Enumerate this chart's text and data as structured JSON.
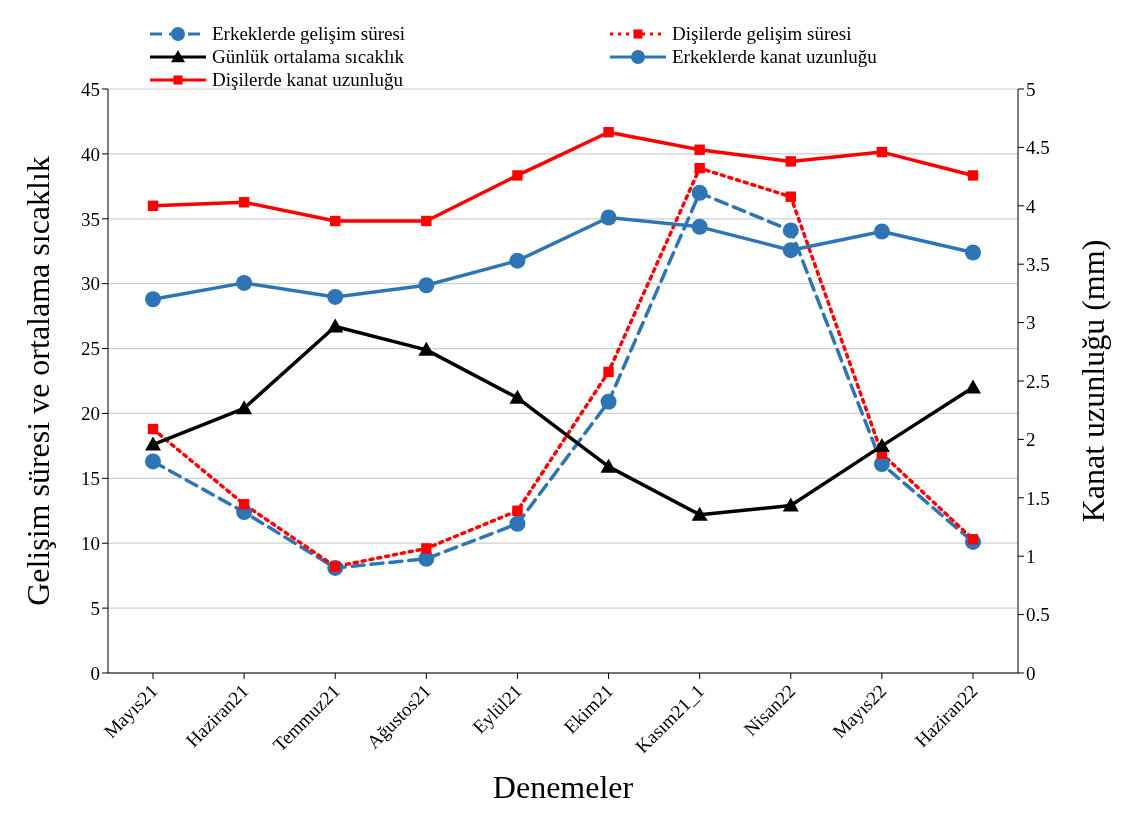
{
  "chart_data": {
    "type": "line",
    "xlabel": "Denemeler",
    "ylabel": "Gelişim süresi ve ortalama sıcaklık",
    "y2label": "Kanat uzunluğu (mm)",
    "categories": [
      "Mayıs21",
      "Haziran21",
      "Temmuz21",
      "Ağustos21",
      "Eylül21",
      "Ekim21",
      "Kasım21_1",
      "Nisan22",
      "Mayıs22",
      "Haziran22"
    ],
    "ylim": [
      0,
      45
    ],
    "yticks": [
      0,
      5,
      10,
      15,
      20,
      25,
      30,
      35,
      40,
      45
    ],
    "y2lim": [
      0,
      5
    ],
    "y2ticks": [
      0,
      0.5,
      1,
      1.5,
      2,
      2.5,
      3,
      3.5,
      4,
      4.5,
      5
    ],
    "grid": "y",
    "legend": "top",
    "series": [
      {
        "name": "Erkeklerde gelişim süresi",
        "color": "#2e75b6",
        "marker": "circle",
        "line_style": "dashed",
        "values": [
          16.3,
          12.4,
          8.1,
          8.8,
          11.5,
          20.9,
          37.0,
          34.1,
          16.1,
          10.1
        ]
      },
      {
        "name": "Dişilerde gelişim süresi",
        "color": "#ff0000",
        "marker": "square",
        "line_style": "dotted",
        "values": [
          18.8,
          13.0,
          8.2,
          9.6,
          12.5,
          23.2,
          38.9,
          36.7,
          16.9,
          10.3
        ]
      },
      {
        "name": "Günlük ortalama sıcaklık",
        "color": "#000000",
        "marker": "triangle",
        "line_style": "solid",
        "values": [
          17.6,
          20.4,
          26.7,
          24.9,
          21.2,
          15.9,
          12.2,
          12.9,
          17.5,
          22.0
        ]
      },
      {
        "name": "Erkeklerde kanat uzunluğu",
        "color": "#2e75b6",
        "marker": "circle",
        "line_style": "solid",
        "axis": "y2",
        "values": [
          3.2,
          3.34,
          3.22,
          3.32,
          3.53,
          3.9,
          3.82,
          3.62,
          3.78,
          3.6
        ]
      },
      {
        "name": "Dişilerde kanat uzunluğu",
        "color": "#ff0000",
        "marker": "square",
        "line_style": "solid",
        "axis": "y2",
        "values": [
          4.0,
          4.03,
          3.87,
          3.87,
          4.26,
          4.63,
          4.48,
          4.38,
          4.46,
          4.26
        ]
      }
    ]
  }
}
